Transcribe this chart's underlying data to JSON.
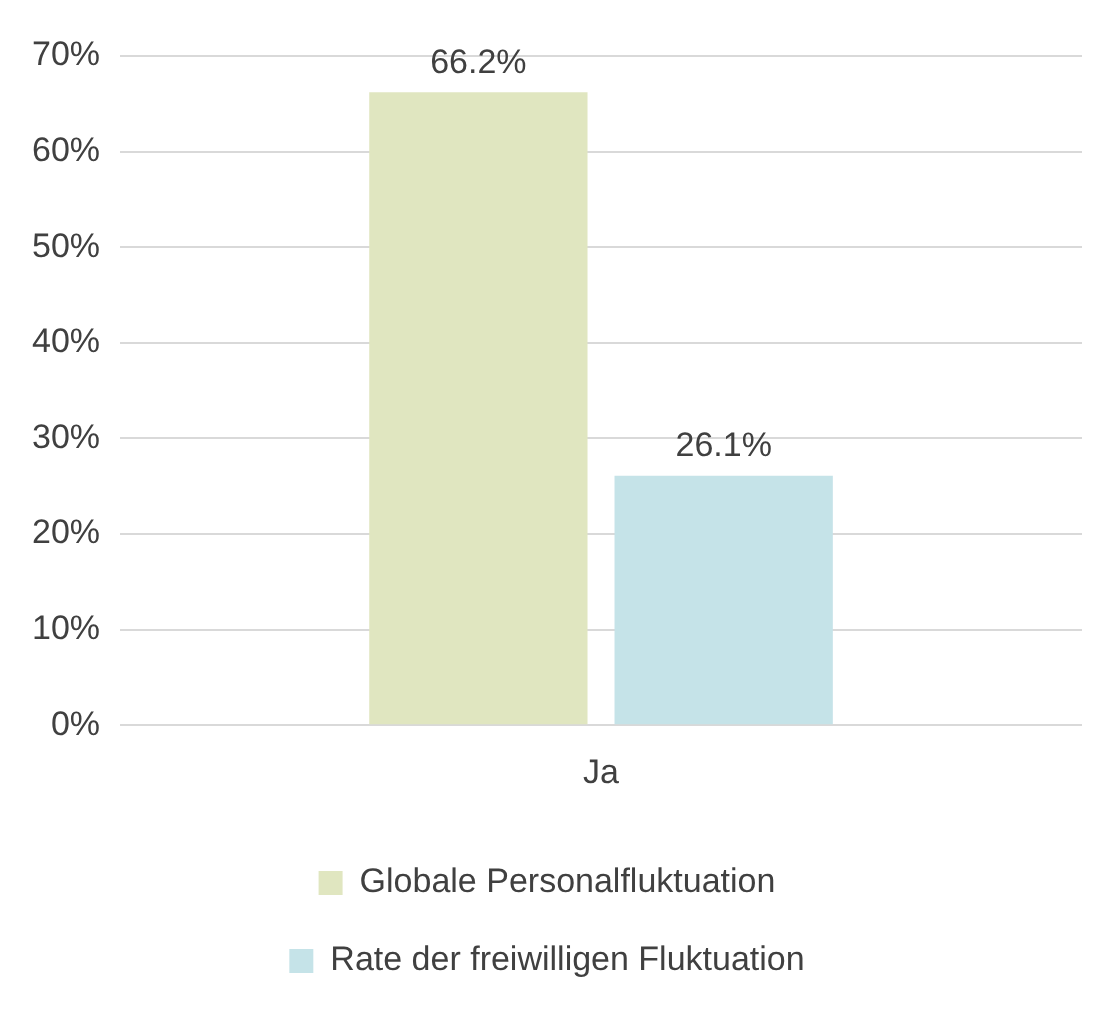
{
  "chart_data": {
    "type": "bar",
    "categories": [
      "Ja"
    ],
    "series": [
      {
        "name": "Globale Personalfluktuation",
        "color": "#e0e6c0",
        "values": [
          66.2
        ],
        "value_labels": [
          "66.2%"
        ]
      },
      {
        "name": "Rate der freiwilligen Fluktuation",
        "color": "#c5e3e8",
        "values": [
          26.1
        ],
        "value_labels": [
          "26.1%"
        ]
      }
    ],
    "ylim": [
      0,
      70
    ],
    "yticks": [
      {
        "value": 0,
        "label": "0%"
      },
      {
        "value": 10,
        "label": "10%"
      },
      {
        "value": 20,
        "label": "20%"
      },
      {
        "value": 30,
        "label": "30%"
      },
      {
        "value": 40,
        "label": "40%"
      },
      {
        "value": 50,
        "label": "50%"
      },
      {
        "value": 60,
        "label": "60%"
      },
      {
        "value": 70,
        "label": "70%"
      }
    ],
    "grid": "y",
    "legend": "bottom"
  }
}
